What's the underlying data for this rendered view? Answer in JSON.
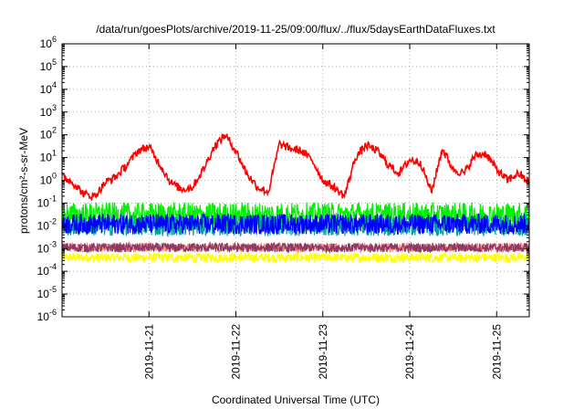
{
  "chart_data": {
    "type": "line",
    "title": "/data/run/goesPlots/archive/2019-11-25/09:00/flux/../flux/5daysEarthDataFluxes.txt",
    "xlabel": "Coordinated Universal Time (UTC)",
    "ylabel": "protons/cm²-s-sr-MeV",
    "y_scale": "log",
    "ylim": [
      1e-06,
      1000000.0
    ],
    "xlim": [
      "2019-11-20",
      "2019-11-25 09:00"
    ],
    "x_ticks": [
      "2019-11-21",
      "2019-11-22",
      "2019-11-23",
      "2019-11-24",
      "2019-11-25"
    ],
    "y_tick_exponents": [
      -6,
      -5,
      -4,
      -3,
      -2,
      -1,
      0,
      1,
      2,
      3,
      4,
      5,
      6
    ],
    "y_tick_base": "10",
    "grid": true,
    "legend": "none",
    "series": [
      {
        "color": "#ff0000",
        "x": [
          "2019-11-20 00:00",
          "2019-11-20 03:00",
          "2019-11-20 06:00",
          "2019-11-20 09:00",
          "2019-11-20 12:00",
          "2019-11-20 15:00",
          "2019-11-20 18:00",
          "2019-11-20 21:00",
          "2019-11-21 00:00",
          "2019-11-21 03:00",
          "2019-11-21 06:00",
          "2019-11-21 09:00",
          "2019-11-21 12:00",
          "2019-11-21 15:00",
          "2019-11-21 18:00",
          "2019-11-21 21:00",
          "2019-11-22 00:00",
          "2019-11-22 03:00",
          "2019-11-22 06:00",
          "2019-11-22 09:00",
          "2019-11-22 12:00",
          "2019-11-22 15:00",
          "2019-11-22 18:00",
          "2019-11-22 21:00",
          "2019-11-23 00:00",
          "2019-11-23 03:00",
          "2019-11-23 06:00",
          "2019-11-23 09:00",
          "2019-11-23 12:00",
          "2019-11-23 15:00",
          "2019-11-23 18:00",
          "2019-11-23 21:00",
          "2019-11-24 00:00",
          "2019-11-24 03:00",
          "2019-11-24 06:00",
          "2019-11-24 09:00",
          "2019-11-24 12:00",
          "2019-11-24 15:00",
          "2019-11-24 18:00",
          "2019-11-24 21:00",
          "2019-11-25 00:00",
          "2019-11-25 03:00",
          "2019-11-25 06:00",
          "2019-11-25 09:00"
        ],
        "values": [
          1.5,
          0.8,
          0.25,
          0.2,
          0.8,
          1.5,
          5,
          20,
          30,
          5,
          0.8,
          0.4,
          0.5,
          3,
          30,
          100,
          20,
          2,
          0.5,
          0.3,
          40,
          25,
          20,
          8,
          1,
          0.5,
          0.2,
          10,
          35,
          20,
          5,
          2,
          8,
          6,
          0.3,
          25,
          3,
          2,
          12,
          15,
          3,
          1,
          2,
          0.8
        ]
      },
      {
        "color": "#00ee00",
        "x": [
          "2019-11-20 00:00",
          "2019-11-25 09:00"
        ],
        "values": [
          0.03,
          0.03
        ]
      },
      {
        "color": "#0000ff",
        "x": [
          "2019-11-20 00:00",
          "2019-11-25 09:00"
        ],
        "values": [
          0.012,
          0.012
        ]
      },
      {
        "color": "#00a0a0",
        "x": [
          "2019-11-20 00:00",
          "2019-11-25 09:00"
        ],
        "values": [
          0.01,
          0.01
        ]
      },
      {
        "color": "#ffff00",
        "x": [
          "2019-11-20 00:00",
          "2019-11-25 09:00"
        ],
        "values": [
          0.0004,
          0.0004
        ]
      },
      {
        "color": "#ff8080",
        "x": [
          "2019-11-20 00:00",
          "2019-11-25 09:00"
        ],
        "values": [
          0.0011,
          0.0011
        ]
      },
      {
        "color": "#8b3a62",
        "x": [
          "2019-11-20 00:00",
          "2019-11-25 09:00"
        ],
        "values": [
          0.0011,
          0.0011
        ]
      }
    ]
  }
}
